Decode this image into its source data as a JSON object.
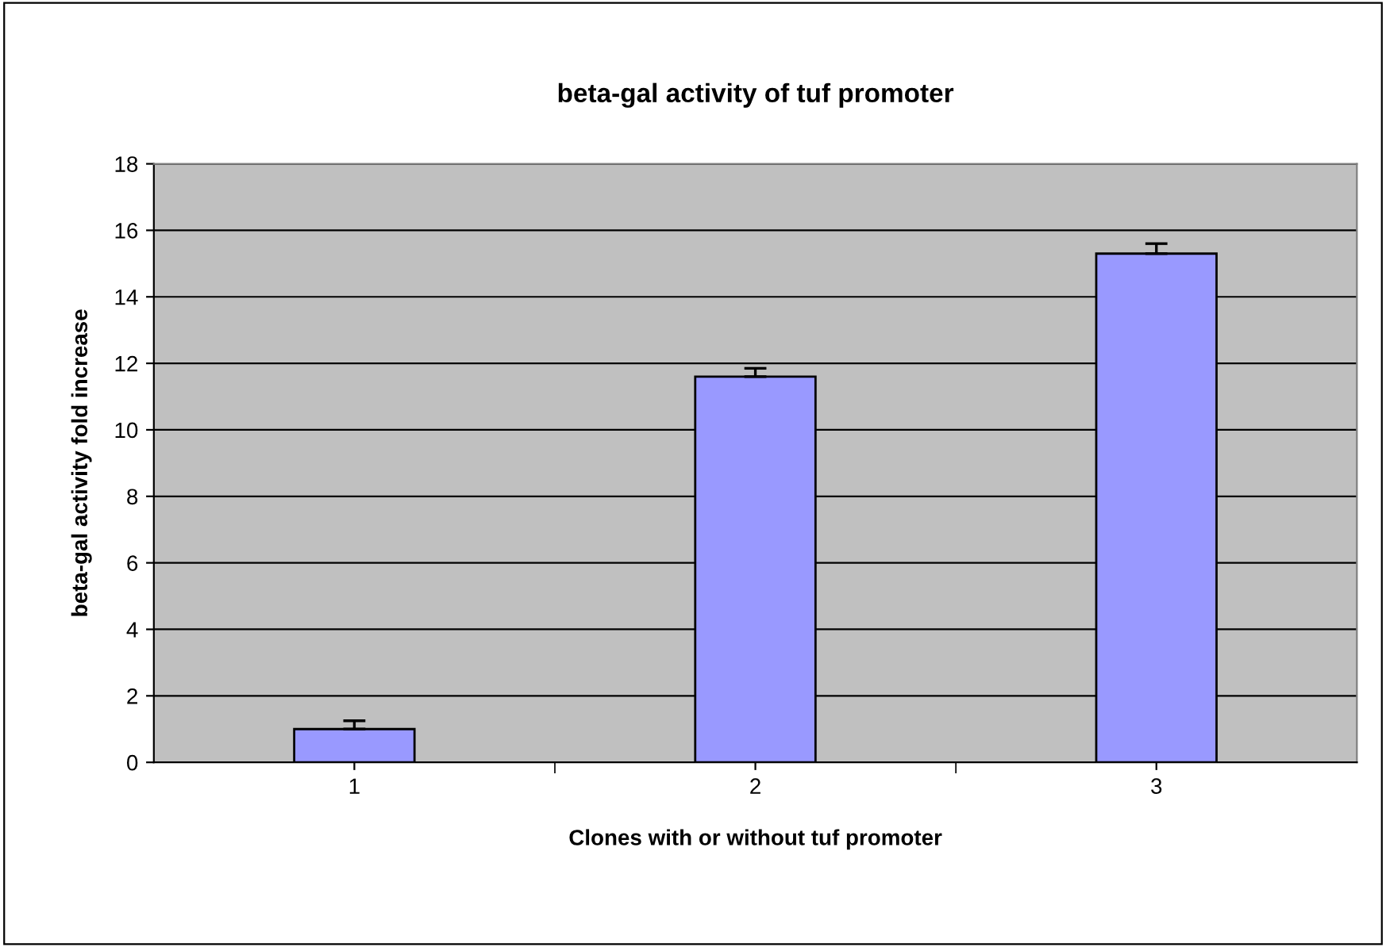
{
  "chart_data": {
    "type": "bar",
    "title": "beta-gal activity of tuf promoter",
    "xlabel": "Clones with or without tuf promoter",
    "ylabel": "beta-gal activity fold increase",
    "categories": [
      "1",
      "2",
      "3"
    ],
    "values": [
      1.0,
      11.6,
      15.3
    ],
    "errors": [
      [
        1.0,
        1.25
      ],
      [
        11.6,
        11.85
      ],
      [
        15.3,
        15.6
      ]
    ],
    "color": "#9999ff",
    "ylim": [
      0,
      18
    ],
    "yticks": [
      0,
      2,
      4,
      6,
      8,
      10,
      12,
      14,
      16,
      18
    ],
    "grid": "y",
    "legend": false
  }
}
